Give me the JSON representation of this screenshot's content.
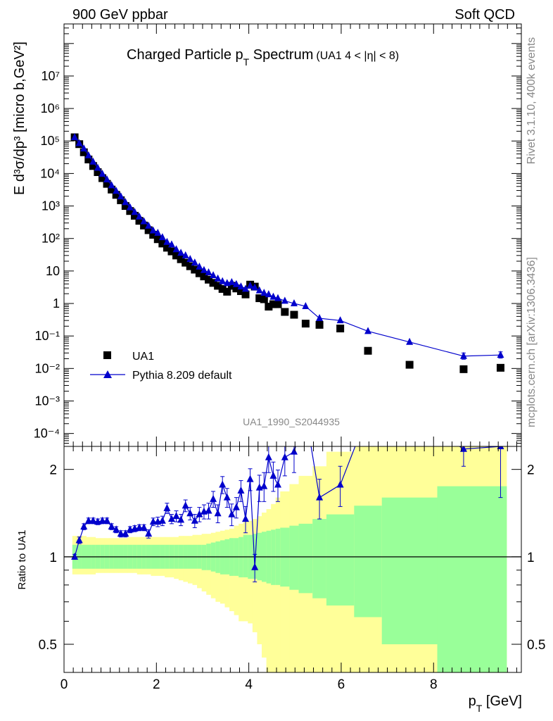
{
  "header": {
    "energy_label": "900 GeV ppbar",
    "process_label": "Soft QCD"
  },
  "side_labels": {
    "rivet": "Rivet 3.1.10,  400k events",
    "mcplots": "mcplots.cern.ch [arXiv:1306.3436]"
  },
  "chart_data": [
    {
      "type": "scatter",
      "panel": "main",
      "title": {
        "main": "Charged Particle p",
        "sub": "T",
        "tail": " Spectrum",
        "cut": "(UA1   4 < |η| < 8)"
      },
      "ylabel": "E d³σ/dp³ [micro b,GeV²]",
      "yscale": "log",
      "ylim": [
        4e-05,
        400000000
      ],
      "xlim": [
        0,
        9.9
      ],
      "y_ticks": [
        "10⁻⁴",
        "10⁻³",
        "10⁻²",
        "10⁻¹",
        "1",
        "10",
        "10²",
        "10³",
        "10⁴",
        "10⁵",
        "10⁶",
        "10⁷"
      ],
      "analysis_tag": "UA1_1990_S2044935",
      "legend": {
        "position": "lower-left",
        "entries": [
          {
            "label": "UA1",
            "marker": "square",
            "color": "#000000"
          },
          {
            "label": "Pythia 8.209 default",
            "marker": "triangle",
            "color": "#0000cc"
          }
        ]
      },
      "series": [
        {
          "name": "UA1",
          "color": "#000000",
          "x": [
            0.23,
            0.33,
            0.43,
            0.53,
            0.63,
            0.73,
            0.83,
            0.93,
            1.03,
            1.13,
            1.23,
            1.33,
            1.43,
            1.53,
            1.63,
            1.73,
            1.83,
            1.93,
            2.03,
            2.13,
            2.23,
            2.33,
            2.43,
            2.53,
            2.63,
            2.73,
            2.83,
            2.93,
            3.03,
            3.13,
            3.23,
            3.33,
            3.43,
            3.53,
            3.63,
            3.73,
            3.83,
            3.93,
            4.03,
            4.13,
            4.23,
            4.33,
            4.43,
            4.53,
            4.63,
            4.78,
            4.98,
            5.23,
            5.53,
            5.98,
            6.58,
            7.48,
            8.65,
            9.45
          ],
          "y": [
            130000,
            80000,
            45000,
            27000,
            17000,
            11000,
            7200,
            4800,
            3200,
            2200,
            1500,
            1000,
            700,
            500,
            350,
            250,
            180,
            130,
            95,
            70,
            52,
            40,
            30,
            23,
            18,
            14,
            11,
            8.5,
            6.8,
            5.4,
            4.3,
            3.5,
            2.8,
            2.3,
            3.5,
            2.9,
            2.4,
            1.9,
            3.8,
            3.3,
            1.45,
            1.35,
            0.8,
            0.95,
            0.95,
            0.55,
            0.45,
            0.24,
            0.22,
            0.17,
            0.035,
            0.013,
            0.0095,
            0.0105
          ]
        },
        {
          "name": "Pythia 8.209 default",
          "color": "#0000cc",
          "x": [
            0.23,
            0.33,
            0.43,
            0.53,
            0.63,
            0.73,
            0.83,
            0.93,
            1.03,
            1.13,
            1.23,
            1.33,
            1.43,
            1.53,
            1.63,
            1.73,
            1.83,
            1.93,
            2.03,
            2.13,
            2.23,
            2.33,
            2.43,
            2.53,
            2.63,
            2.73,
            2.83,
            2.93,
            3.03,
            3.13,
            3.23,
            3.33,
            3.43,
            3.53,
            3.63,
            3.73,
            3.83,
            3.93,
            4.03,
            4.13,
            4.23,
            4.33,
            4.43,
            4.53,
            4.63,
            4.78,
            4.98,
            5.23,
            5.53,
            5.98,
            6.58,
            7.48,
            8.65,
            9.45
          ],
          "y": [
            130000,
            85000,
            58000,
            36000,
            23000,
            14800,
            9700,
            6500,
            4300,
            2900,
            1950,
            1300,
            900,
            650,
            470,
            335,
            245,
            175,
            148,
            108,
            78,
            65,
            46,
            36,
            30,
            23,
            18,
            13.5,
            10.6,
            9,
            7.3,
            5.8,
            4.8,
            4.2,
            4.5,
            3.9,
            3.3,
            2.8,
            3.5,
            3.1,
            2.5,
            2.1,
            1.9,
            1.6,
            1.45,
            1.2,
            1,
            0.82,
            0.35,
            0.3,
            0.14,
            0.065,
            0.024,
            0.026
          ]
        }
      ]
    },
    {
      "type": "line",
      "panel": "ratio",
      "ylabel": "Ratio to UA1",
      "yscale": "log",
      "ylim": [
        0.4,
        2.4
      ],
      "xlim": [
        0,
        9.9
      ],
      "xlabel": {
        "main": "p",
        "sub": "T",
        "tail": " [GeV]"
      },
      "x_ticks": [
        "0",
        "2",
        "4",
        "6",
        "8"
      ],
      "y_ticks": [
        "0.5",
        "1",
        "2"
      ],
      "bands": {
        "x_edges": [
          0.18,
          0.28,
          0.38,
          0.48,
          0.58,
          0.68,
          0.78,
          0.88,
          0.98,
          1.08,
          1.18,
          1.28,
          1.38,
          1.48,
          1.58,
          1.68,
          1.78,
          1.88,
          1.98,
          2.08,
          2.18,
          2.28,
          2.38,
          2.48,
          2.58,
          2.68,
          2.78,
          2.88,
          2.98,
          3.08,
          3.18,
          3.28,
          3.38,
          3.48,
          3.58,
          3.68,
          3.78,
          3.88,
          3.98,
          4.08,
          4.18,
          4.28,
          4.38,
          4.48,
          4.58,
          4.68,
          4.88,
          5.08,
          5.38,
          5.68,
          6.28,
          6.88,
          8.08,
          9.58
        ],
        "stat_hi": [
          1.1,
          1.1,
          1.1,
          1.1,
          1.1,
          1.1,
          1.1,
          1.1,
          1.1,
          1.1,
          1.1,
          1.1,
          1.1,
          1.1,
          1.1,
          1.1,
          1.1,
          1.1,
          1.1,
          1.1,
          1.1,
          1.1,
          1.1,
          1.1,
          1.1,
          1.1,
          1.1,
          1.1,
          1.1,
          1.11,
          1.12,
          1.13,
          1.14,
          1.15,
          1.16,
          1.16,
          1.17,
          1.19,
          1.19,
          1.2,
          1.21,
          1.22,
          1.23,
          1.24,
          1.25,
          1.26,
          1.28,
          1.3,
          1.35,
          1.4,
          1.5,
          1.6,
          1.75,
          1.85
        ],
        "stat_lo": [
          0.91,
          0.91,
          0.91,
          0.91,
          0.91,
          0.91,
          0.91,
          0.91,
          0.91,
          0.91,
          0.91,
          0.91,
          0.91,
          0.91,
          0.91,
          0.91,
          0.91,
          0.91,
          0.91,
          0.91,
          0.91,
          0.91,
          0.91,
          0.91,
          0.91,
          0.91,
          0.91,
          0.91,
          0.9,
          0.9,
          0.89,
          0.88,
          0.87,
          0.87,
          0.86,
          0.86,
          0.85,
          0.85,
          0.84,
          0.84,
          0.83,
          0.82,
          0.81,
          0.8,
          0.8,
          0.79,
          0.77,
          0.75,
          0.72,
          0.68,
          0.62,
          0.5,
          0.4,
          0.35
        ],
        "total_hi": [
          1.18,
          1.18,
          1.18,
          1.17,
          1.17,
          1.16,
          1.16,
          1.16,
          1.16,
          1.16,
          1.16,
          1.16,
          1.17,
          1.17,
          1.17,
          1.17,
          1.17,
          1.17,
          1.17,
          1.17,
          1.17,
          1.17,
          1.17,
          1.18,
          1.18,
          1.18,
          1.19,
          1.19,
          1.2,
          1.2,
          1.21,
          1.22,
          1.23,
          1.24,
          1.25,
          1.28,
          1.3,
          1.32,
          1.33,
          1.35,
          1.38,
          1.42,
          1.46,
          1.52,
          1.6,
          1.68,
          1.78,
          1.9,
          2.05,
          2.3,
          2.5,
          2.5,
          2.5,
          2.5
        ],
        "total_lo": [
          0.87,
          0.87,
          0.87,
          0.87,
          0.87,
          0.88,
          0.88,
          0.88,
          0.88,
          0.88,
          0.88,
          0.88,
          0.88,
          0.88,
          0.87,
          0.87,
          0.87,
          0.86,
          0.86,
          0.86,
          0.85,
          0.85,
          0.84,
          0.83,
          0.82,
          0.81,
          0.8,
          0.78,
          0.76,
          0.74,
          0.72,
          0.7,
          0.69,
          0.67,
          0.65,
          0.63,
          0.6,
          0.6,
          0.59,
          0.55,
          0.5,
          0.45,
          0.4,
          0.38,
          0.36,
          0.35,
          0.35,
          0.35,
          0.35,
          0.35,
          0.35,
          0.35,
          0.35,
          0.35
        ]
      },
      "series": [
        {
          "name": "Pythia 8.209 default",
          "color": "#0000cc",
          "x": [
            0.23,
            0.33,
            0.43,
            0.53,
            0.63,
            0.73,
            0.83,
            0.93,
            1.03,
            1.13,
            1.23,
            1.33,
            1.43,
            1.53,
            1.63,
            1.73,
            1.83,
            1.93,
            2.03,
            2.13,
            2.23,
            2.33,
            2.43,
            2.53,
            2.63,
            2.73,
            2.83,
            2.93,
            3.03,
            3.13,
            3.23,
            3.33,
            3.43,
            3.53,
            3.63,
            3.73,
            3.83,
            3.93,
            4.03,
            4.13,
            4.23,
            4.33,
            4.43,
            4.53,
            4.63,
            4.78,
            4.98,
            5.23,
            5.53,
            5.98,
            6.58,
            7.48,
            8.65,
            9.45
          ],
          "y": [
            1.0,
            1.14,
            1.27,
            1.33,
            1.33,
            1.32,
            1.33,
            1.33,
            1.27,
            1.24,
            1.2,
            1.2,
            1.24,
            1.25,
            1.26,
            1.26,
            1.2,
            1.32,
            1.32,
            1.33,
            1.47,
            1.35,
            1.38,
            1.34,
            1.5,
            1.41,
            1.33,
            1.4,
            1.43,
            1.44,
            1.58,
            1.41,
            1.77,
            1.6,
            1.4,
            1.48,
            1.69,
            1.35,
            1.85,
            0.92,
            1.73,
            1.75,
            2.2,
            1.9,
            1.77,
            2.2,
            2.3,
            3.6,
            1.6,
            1.77,
            4.0,
            5.0,
            2.35,
            2.4
          ],
          "err": [
            0.02,
            0.03,
            0.03,
            0.03,
            0.03,
            0.03,
            0.03,
            0.03,
            0.03,
            0.03,
            0.03,
            0.03,
            0.03,
            0.03,
            0.03,
            0.03,
            0.04,
            0.04,
            0.05,
            0.05,
            0.06,
            0.05,
            0.06,
            0.06,
            0.07,
            0.07,
            0.07,
            0.08,
            0.08,
            0.09,
            0.1,
            0.1,
            0.12,
            0.12,
            0.12,
            0.12,
            0.14,
            0.14,
            0.16,
            0.1,
            0.18,
            0.2,
            0.25,
            0.22,
            0.22,
            0.3,
            0.35,
            0.5,
            0.25,
            0.28,
            0.5,
            0.6,
            0.3,
            0.8
          ]
        }
      ]
    }
  ]
}
